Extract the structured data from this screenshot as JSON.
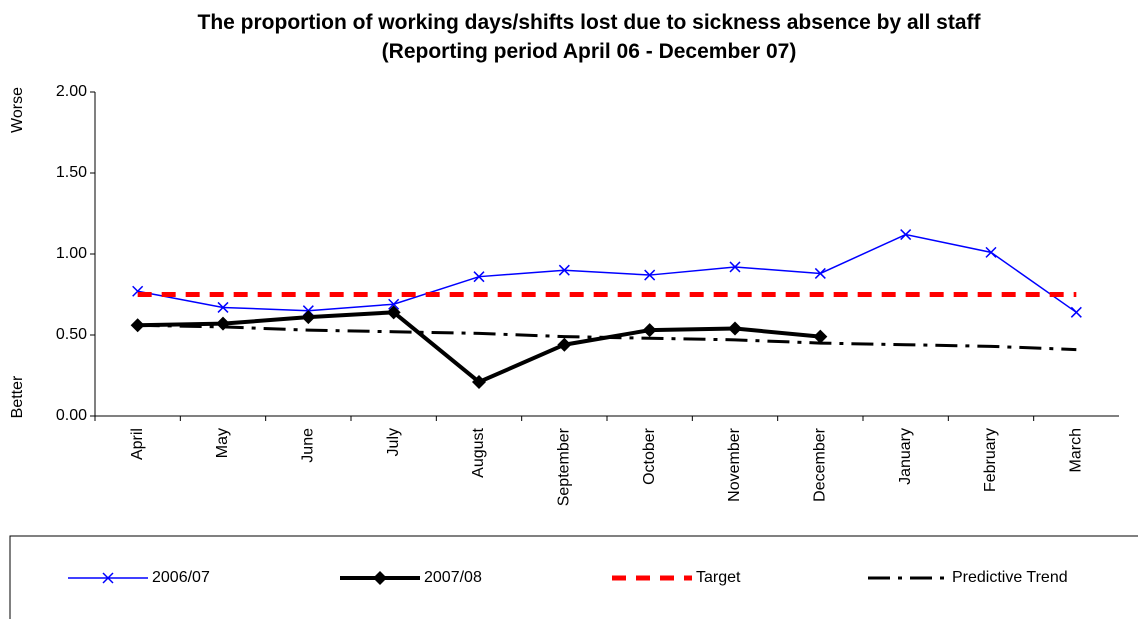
{
  "chart_data": {
    "type": "line",
    "title": "The proportion of working days/shifts lost due to sickness absence by all staff",
    "subtitle": "(Reporting period April 06 - December 07)",
    "y_label_top": "Worse",
    "y_label_bottom": "Better",
    "categories": [
      "April",
      "May",
      "June",
      "July",
      "August",
      "September",
      "October",
      "November",
      "December",
      "January",
      "February",
      "March"
    ],
    "series": [
      {
        "name": "2006/07",
        "color": "#0000ff",
        "width": 1.5,
        "dash": "none",
        "marker": "x",
        "values": [
          0.77,
          0.67,
          0.65,
          0.69,
          0.86,
          0.9,
          0.87,
          0.92,
          0.88,
          1.12,
          1.01,
          0.64
        ]
      },
      {
        "name": "2007/08",
        "color": "#000000",
        "width": 4,
        "dash": "none",
        "marker": "diamond",
        "values": [
          0.56,
          0.57,
          0.61,
          0.64,
          0.21,
          0.44,
          0.53,
          0.54,
          0.49,
          null,
          null,
          null
        ]
      },
      {
        "name": "Target",
        "color": "#ff0000",
        "width": 5,
        "dash": "14 10",
        "marker": "none",
        "values": [
          0.75,
          0.75,
          0.75,
          0.75,
          0.75,
          0.75,
          0.75,
          0.75,
          0.75,
          0.75,
          0.75,
          0.75
        ]
      },
      {
        "name": "Predictive Trend",
        "color": "#000000",
        "width": 3,
        "dash": "22 8 4 8",
        "marker": "none",
        "values": [
          0.56,
          0.55,
          0.53,
          0.52,
          0.51,
          0.49,
          0.48,
          0.47,
          0.45,
          0.44,
          0.43,
          0.41
        ]
      }
    ],
    "ylim": [
      0,
      2
    ],
    "yticks": [
      {
        "value": 0,
        "label": "0.00"
      },
      {
        "value": 0.5,
        "label": "0.50"
      },
      {
        "value": 1,
        "label": "1.00"
      },
      {
        "value": 1.5,
        "label": "1.50"
      },
      {
        "value": 2,
        "label": "2.00"
      }
    ],
    "grid": false,
    "legend": "bottom"
  }
}
